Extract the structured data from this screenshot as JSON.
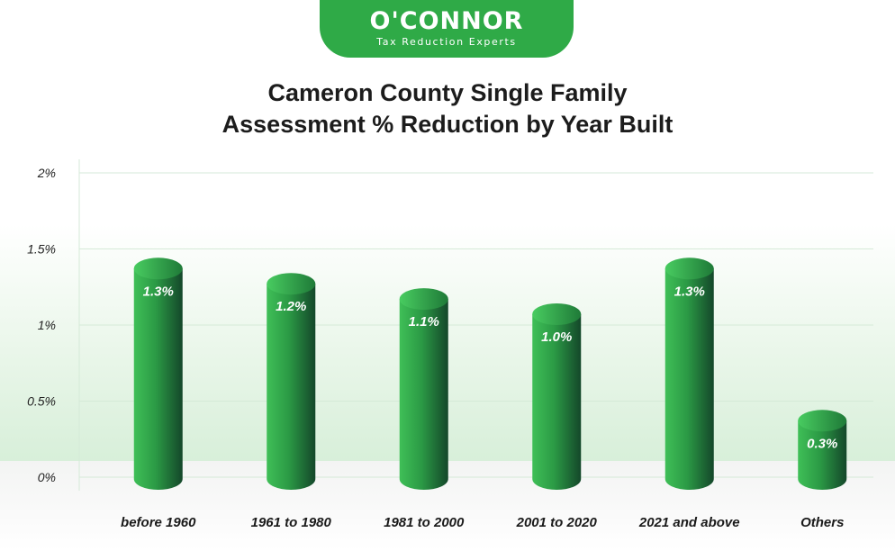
{
  "logo": {
    "wordmark": "O'CONNOR",
    "tagline": "Tax Reduction Experts"
  },
  "colors": {
    "brand_green": "#2faa47",
    "bar_light": "#3fbf57",
    "bar_dark": "#14472a",
    "grid": "#d5ead8"
  },
  "chart_data": {
    "type": "bar",
    "title_line1": "Cameron County Single Family",
    "title_line2": "Assessment % Reduction by Year Built",
    "categories": [
      "before 1960",
      "1961 to 1980",
      "1981 to 2000",
      "2001 to 2020",
      "2021 and above",
      "Others"
    ],
    "values": [
      1.3,
      1.2,
      1.1,
      1.0,
      1.3,
      0.3
    ],
    "data_labels": [
      "1.3%",
      "1.2%",
      "1.1%",
      "1.0%",
      "1.3%",
      "0.3%"
    ],
    "y_ticks": [
      0,
      0.5,
      1,
      1.5,
      2
    ],
    "y_tick_labels": [
      "0%",
      "0.5%",
      "1%",
      "1.5%",
      "2%"
    ],
    "ylim": [
      0,
      2
    ],
    "grid": true,
    "legend": "none"
  }
}
